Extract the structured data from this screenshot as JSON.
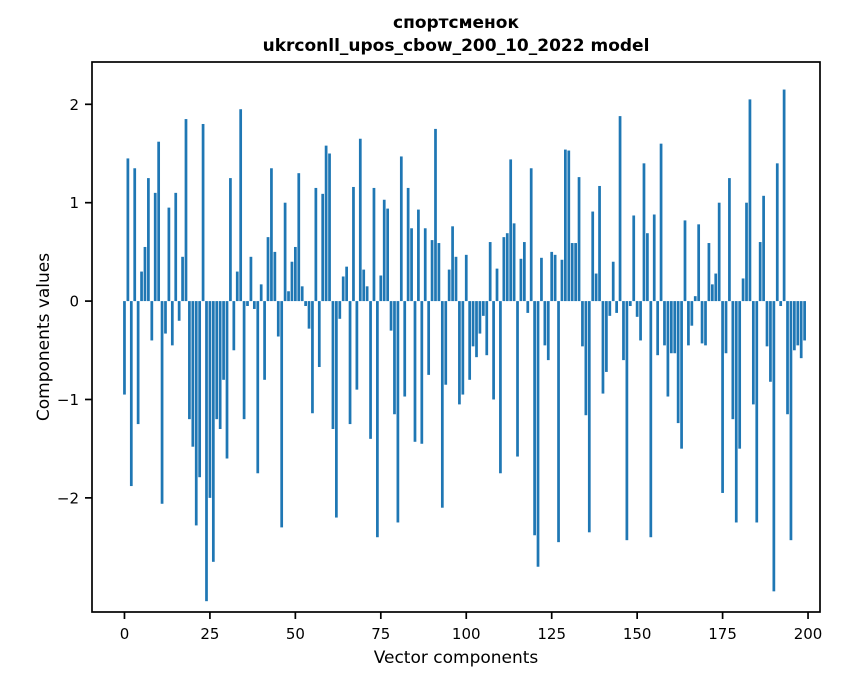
{
  "chart_data": {
    "type": "bar",
    "title": "спортсменок\nukrconll_upos_cbow_200_10_2022 model",
    "title_line1": "спортсменок",
    "title_line2": "ukrconll_upos_cbow_200_10_2022 model",
    "xlabel": "Vector components",
    "ylabel": "Components values",
    "bar_color": "#1f77b4",
    "axis_color": "#000000",
    "background": "#ffffff",
    "grid": false,
    "legend": null,
    "x_start": 0,
    "x_ticks": [
      0,
      25,
      50,
      75,
      100,
      125,
      150,
      175,
      200
    ],
    "y_ticks": [
      2,
      1,
      0,
      -1,
      -2
    ],
    "xlim": [
      -9.5,
      203.5
    ],
    "ylim": [
      -3.16,
      2.43
    ],
    "bar_width_data_units": 0.8,
    "values": [
      -0.95,
      1.45,
      -1.88,
      1.35,
      -1.25,
      0.3,
      0.55,
      1.25,
      -0.4,
      1.1,
      1.62,
      -2.06,
      -0.33,
      0.95,
      -0.45,
      1.1,
      -0.2,
      0.45,
      1.85,
      -1.2,
      -1.48,
      -2.28,
      -1.79,
      1.8,
      -3.05,
      -2.0,
      -2.65,
      -1.2,
      -1.3,
      -0.8,
      -1.6,
      1.25,
      -0.5,
      0.3,
      1.95,
      -1.2,
      -0.05,
      0.45,
      -0.08,
      -1.75,
      0.17,
      -0.8,
      0.65,
      1.35,
      0.5,
      -0.36,
      -2.3,
      1.0,
      0.1,
      0.4,
      0.55,
      1.3,
      0.15,
      -0.05,
      -0.28,
      -1.14,
      1.15,
      -0.67,
      1.09,
      1.58,
      1.5,
      -1.3,
      -2.2,
      -0.18,
      0.25,
      0.35,
      -1.25,
      1.16,
      -0.9,
      1.65,
      0.32,
      0.15,
      -1.4,
      1.15,
      -2.4,
      0.26,
      1.03,
      0.94,
      -0.3,
      -1.15,
      -2.25,
      1.47,
      -0.97,
      1.15,
      0.74,
      -1.43,
      0.93,
      -1.45,
      0.74,
      -0.75,
      0.62,
      1.75,
      0.59,
      -2.1,
      -0.85,
      0.32,
      0.76,
      0.45,
      -1.05,
      -0.95,
      0.47,
      -0.8,
      -0.46,
      -0.57,
      -0.33,
      -0.15,
      -0.55,
      0.6,
      -1.0,
      0.33,
      -1.75,
      0.65,
      0.69,
      1.44,
      0.79,
      -1.58,
      0.43,
      0.6,
      -0.12,
      1.35,
      -2.38,
      -2.7,
      0.44,
      -0.45,
      -0.6,
      0.5,
      0.47,
      -2.45,
      0.42,
      1.54,
      1.53,
      0.59,
      0.59,
      1.26,
      -0.46,
      -1.16,
      -2.35,
      0.91,
      0.28,
      1.17,
      -0.94,
      -0.72,
      -0.15,
      0.4,
      -0.12,
      1.88,
      -0.6,
      -2.43,
      -0.05,
      0.87,
      -0.16,
      -0.4,
      1.4,
      0.69,
      -2.4,
      0.88,
      -0.55,
      1.6,
      -0.45,
      -0.97,
      -0.53,
      -0.53,
      -1.24,
      -1.5,
      0.82,
      -0.45,
      -0.25,
      0.05,
      0.78,
      -0.43,
      -0.45,
      0.59,
      0.17,
      0.28,
      1.0,
      -1.95,
      -0.53,
      1.25,
      -1.2,
      -2.25,
      -1.5,
      0.23,
      1.0,
      2.05,
      -1.05,
      -2.25,
      0.6,
      1.07,
      -0.46,
      -0.82,
      -2.95,
      1.4,
      -0.05,
      2.15,
      -1.15,
      -2.43,
      -0.5,
      -0.45,
      -0.58,
      -0.4
    ]
  }
}
